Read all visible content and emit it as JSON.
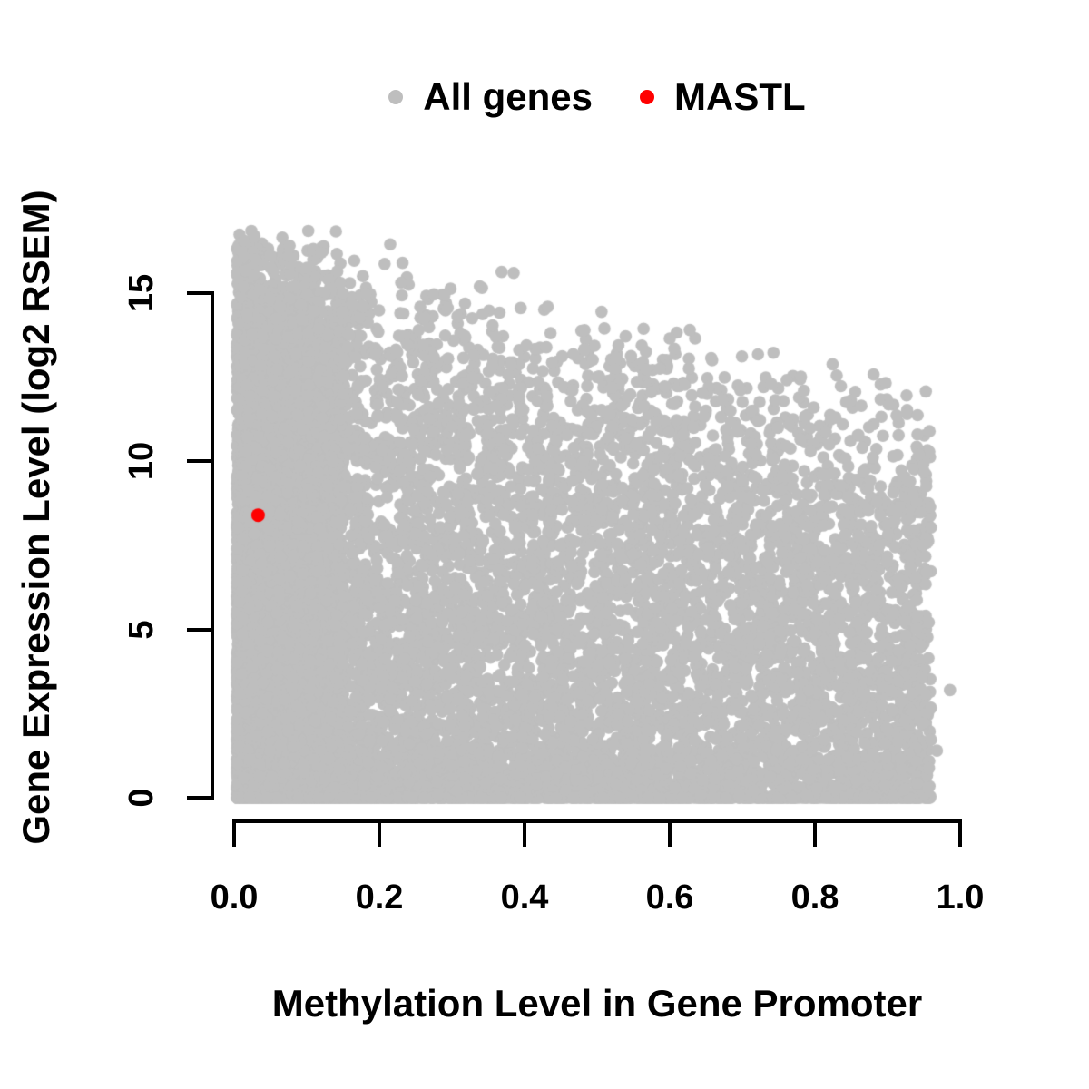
{
  "legend": {
    "items": [
      {
        "label": "All genes",
        "color": "#bebebe"
      },
      {
        "label": "MASTL",
        "color": "#ff0000"
      }
    ]
  },
  "chart_data": {
    "type": "scatter",
    "title": "",
    "xlabel": "Methylation Level in Gene Promoter",
    "ylabel": "Gene Expression Level (log2 RSEM)",
    "xlim": [
      0,
      1
    ],
    "ylim": [
      0,
      15
    ],
    "x_tick_values": [
      0.0,
      0.2,
      0.4,
      0.6,
      0.8,
      1.0
    ],
    "x_tick_labels": [
      "0.0",
      "0.2",
      "0.4",
      "0.6",
      "0.8",
      "1.0"
    ],
    "y_tick_values": [
      0,
      5,
      10,
      15
    ],
    "y_tick_labels": [
      "0",
      "5",
      "10",
      "15"
    ],
    "grid": false,
    "legend_position": "top",
    "axis_color": "#000000",
    "series": [
      {
        "name": "All genes",
        "color": "#bebebe",
        "marker": "filled-circle",
        "marker_radius_px": 6.8,
        "summary": "~15000 genes: very dense column at promoter methylation 0-0.15 spanning expression 0-16.8; cloud extends to methylation ~0.96 with upper envelope falling from ~16.8 at methylation 0 to ~11.8 at 0.96; solid band of silent genes at expression 0 across all methylation levels",
        "data_extent": {
          "methylation": [
            0.004,
            0.986
          ],
          "expression": [
            0,
            16.8
          ]
        },
        "generator": {
          "seed": 42,
          "n_points": 15000,
          "m_min": 0.004,
          "m_max": 0.962,
          "left_column_fraction": 0.4,
          "left_column_span": 0.148,
          "left_column_power": 1.35,
          "spread_span": 0.956,
          "spread_power": 1.25,
          "envelope_intercept": 16.8,
          "envelope_slope": -5.2,
          "envelope_noise_sd": 0.45,
          "zero_band_fraction": 0.1,
          "low_band_fraction": 0.07,
          "low_band_max": 1.6,
          "vertical_fade_exponent": 0.6667,
          "e_max": 16.85
        },
        "notable_points": [
          [
            0.028,
            16.7
          ],
          [
            0.075,
            16.1
          ],
          [
            0.12,
            16.2
          ],
          [
            0.215,
            16.45
          ],
          [
            0.232,
            15.9
          ],
          [
            0.385,
            15.6
          ],
          [
            0.51,
            13.95
          ],
          [
            0.6,
            13.65
          ],
          [
            0.74,
            12.3
          ],
          [
            0.83,
            12.55
          ],
          [
            0.986,
            3.2
          ],
          [
            0.968,
            1.4
          ]
        ]
      },
      {
        "name": "MASTL",
        "color": "#ff0000",
        "marker": "filled-circle",
        "marker_radius_px": 7.5,
        "points": [
          {
            "methylation": 0.033,
            "expression": 8.4
          }
        ]
      }
    ]
  }
}
